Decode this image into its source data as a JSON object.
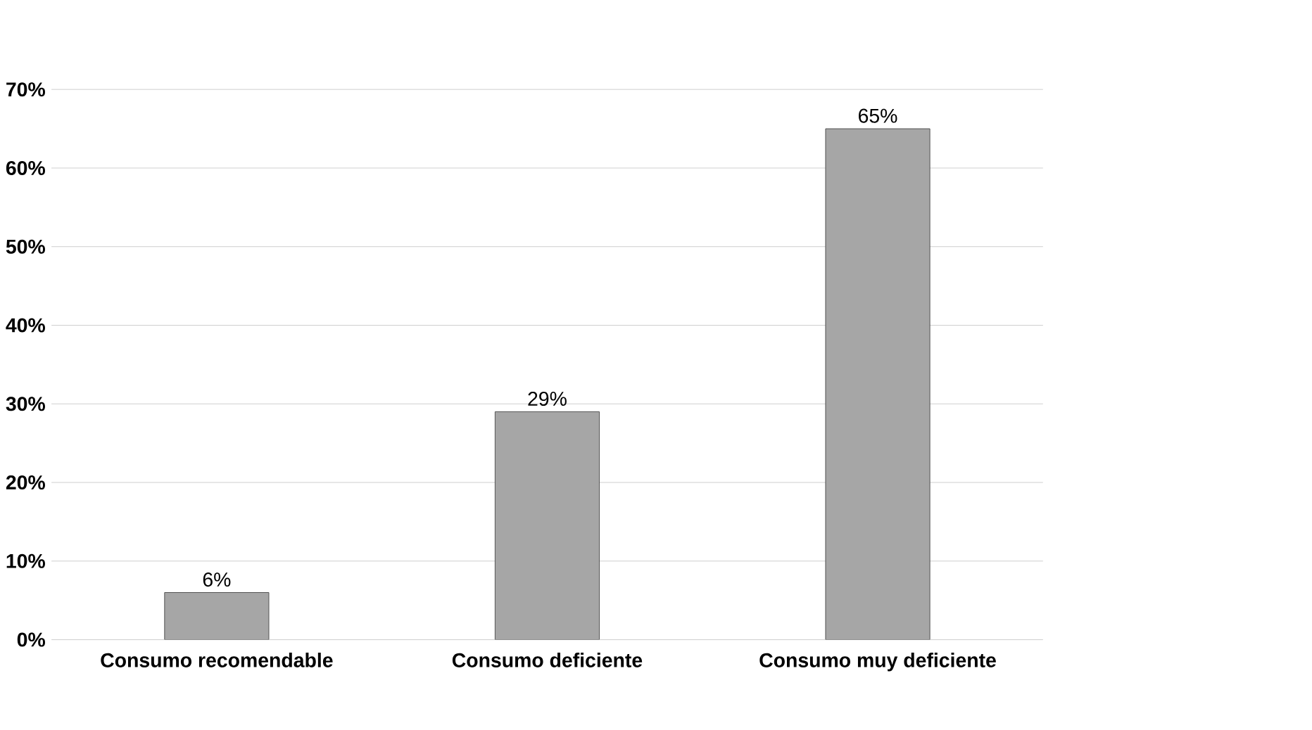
{
  "chart_data": {
    "type": "bar",
    "categories": [
      "Consumo recomendable",
      "Consumo deficiente",
      "Consumo muy deficiente"
    ],
    "values": [
      6,
      29,
      65
    ],
    "value_labels": [
      "6%",
      "29%",
      "65%"
    ],
    "color": "#a6a6a6",
    "ylim": [
      0,
      70
    ],
    "yticks": [
      {
        "value": 0,
        "label": "0%"
      },
      {
        "value": 10,
        "label": "10%"
      },
      {
        "value": 20,
        "label": "20%"
      },
      {
        "value": 30,
        "label": "30%"
      },
      {
        "value": 40,
        "label": "40%"
      },
      {
        "value": 50,
        "label": "50%"
      },
      {
        "value": 60,
        "label": "60%"
      },
      {
        "value": 70,
        "label": "70%"
      }
    ],
    "grid": "y"
  }
}
